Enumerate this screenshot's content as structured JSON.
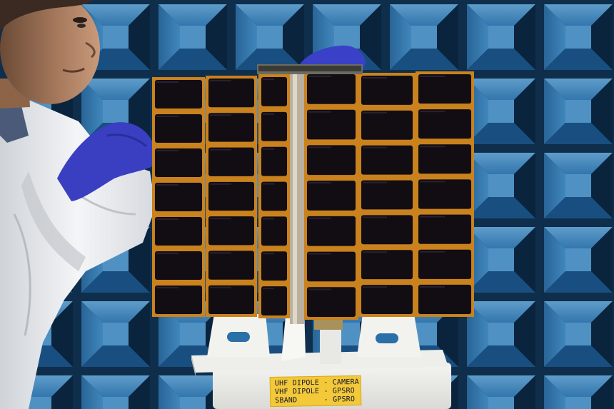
{
  "label": {
    "lines": [
      "UHF DIPOLE - CAMERA",
      "VHF DIPOLE - GPSRO",
      "SBAND      - GPSRO"
    ]
  },
  "colors": {
    "chamber_blue": "#3f8fcf",
    "chamber_shadow": "#0e2b48",
    "panel_frame": "#c9821e",
    "solar_cell": "#120d12",
    "glove": "#3a3fc2",
    "coverall": "#eef0f3",
    "label": "#f3c93a"
  }
}
